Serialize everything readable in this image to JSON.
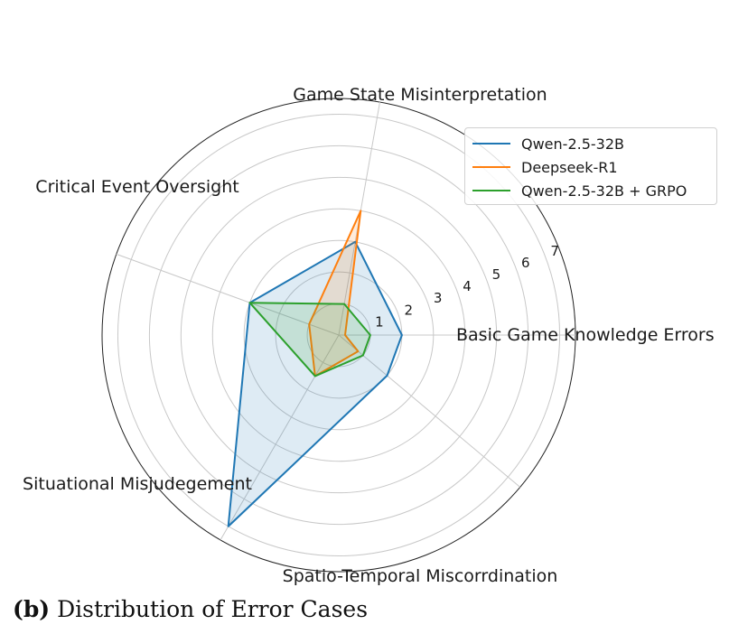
{
  "chart_data": {
    "type": "radar",
    "title": "",
    "axes": [
      "Basic Game Knowledge Errors",
      "Game State Misinterpretation",
      "Critical Event Oversight",
      "Situational Misjudegement",
      "Spatio-Temporal Miscorrdination"
    ],
    "rlim": [
      0,
      7.5
    ],
    "rticks": [
      1,
      2,
      3,
      4,
      5,
      6,
      7
    ],
    "grid": true,
    "legend_position": "top-right",
    "series": [
      {
        "name": "Qwen-2.5-32B",
        "color": "#1f77b4",
        "fill": true,
        "values": [
          2,
          3,
          3,
          7,
          2
        ]
      },
      {
        "name": "Deepseek-R1",
        "color": "#ff7f0e",
        "fill": true,
        "values": [
          0.2,
          4,
          1,
          1.5,
          0.8
        ]
      },
      {
        "name": "Qwen-2.5-32B + GRPO",
        "color": "#2ca02c",
        "fill": true,
        "values": [
          1,
          1,
          3,
          1.5,
          1
        ]
      }
    ]
  },
  "caption": {
    "label": "(b)",
    "text": "Distribution of Error Cases"
  }
}
